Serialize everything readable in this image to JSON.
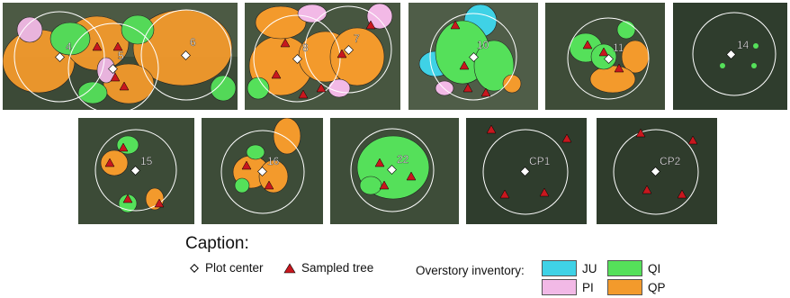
{
  "panels_row1": [
    {
      "id": "p-4-5-6",
      "labels": [
        "4",
        "5",
        "6"
      ]
    },
    {
      "id": "p-8-7",
      "labels": [
        "8",
        "7"
      ]
    },
    {
      "id": "p-10",
      "labels": [
        "10"
      ]
    },
    {
      "id": "p-11",
      "labels": [
        "11"
      ]
    },
    {
      "id": "p-14",
      "labels": [
        "14"
      ]
    }
  ],
  "panels_row2": [
    {
      "id": "p-15",
      "labels": [
        "15"
      ]
    },
    {
      "id": "p-16",
      "labels": [
        "16"
      ]
    },
    {
      "id": "p-22",
      "labels": [
        "22"
      ]
    },
    {
      "id": "p-cp1",
      "labels": [
        "CP1"
      ]
    },
    {
      "id": "p-cp2",
      "labels": [
        "CP2"
      ]
    }
  ],
  "caption": {
    "title": "Caption:",
    "plot_center": "Plot center",
    "sampled_tree": "Sampled tree",
    "overstory": "Overstory inventory:",
    "species": [
      {
        "code": "JU",
        "color": "#3fd2e6"
      },
      {
        "code": "QI",
        "color": "#55e05a"
      },
      {
        "code": "PI",
        "color": "#f2b9e6"
      },
      {
        "code": "QP",
        "color": "#f39a2c"
      }
    ]
  },
  "colors": {
    "background_dark": "#2f3f2c",
    "background_light": "#6d7a62",
    "circle": "#ffffff",
    "tree_marker": "#c8171e",
    "center_marker": "#ffffff"
  }
}
